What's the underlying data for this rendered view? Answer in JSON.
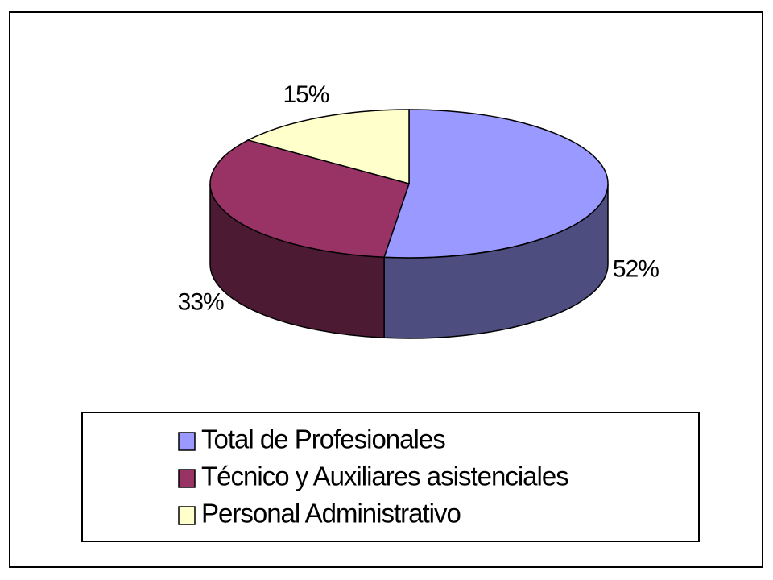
{
  "chart_data": {
    "type": "pie",
    "categories": [
      "Total de Profesionales",
      "Técnico y Auxiliares asistenciales",
      "Personal Administrativo"
    ],
    "values": [
      52,
      33,
      15
    ],
    "value_labels": [
      "52%",
      "33%",
      "15%"
    ],
    "colors": [
      "#9999ff",
      "#993366",
      "#ffffcc"
    ]
  }
}
